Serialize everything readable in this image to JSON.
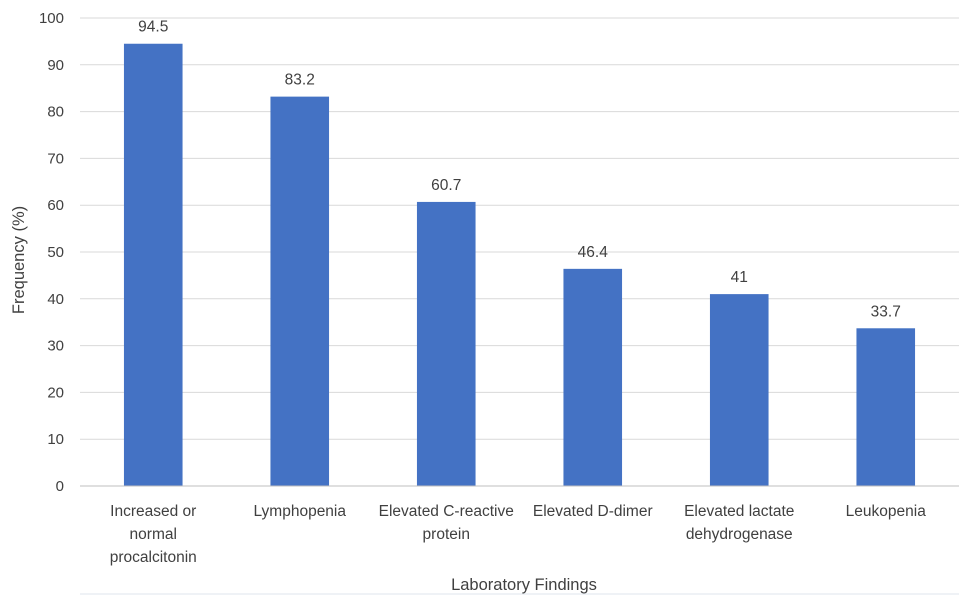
{
  "chart_data": {
    "type": "bar",
    "title": "",
    "xlabel": "Laboratory Findings",
    "ylabel": "Frequency (%)",
    "ylim": [
      0,
      100
    ],
    "ytick_step": 10,
    "grid": true,
    "legend": "none",
    "categories": [
      [
        "Increased or",
        "normal",
        "procalcitonin"
      ],
      [
        "Lymphopenia"
      ],
      [
        "Elevated C-reactive",
        "protein"
      ],
      [
        "Elevated D-dimer"
      ],
      [
        "Elevated lactate",
        "dehydrogenase"
      ],
      [
        "Leukopenia"
      ]
    ],
    "values": [
      94.5,
      83.2,
      60.7,
      46.4,
      41,
      33.7
    ],
    "data_labels": [
      "94.5",
      "83.2",
      "60.7",
      "46.4",
      "41",
      "33.7"
    ],
    "bar_color": "#4472c4"
  }
}
